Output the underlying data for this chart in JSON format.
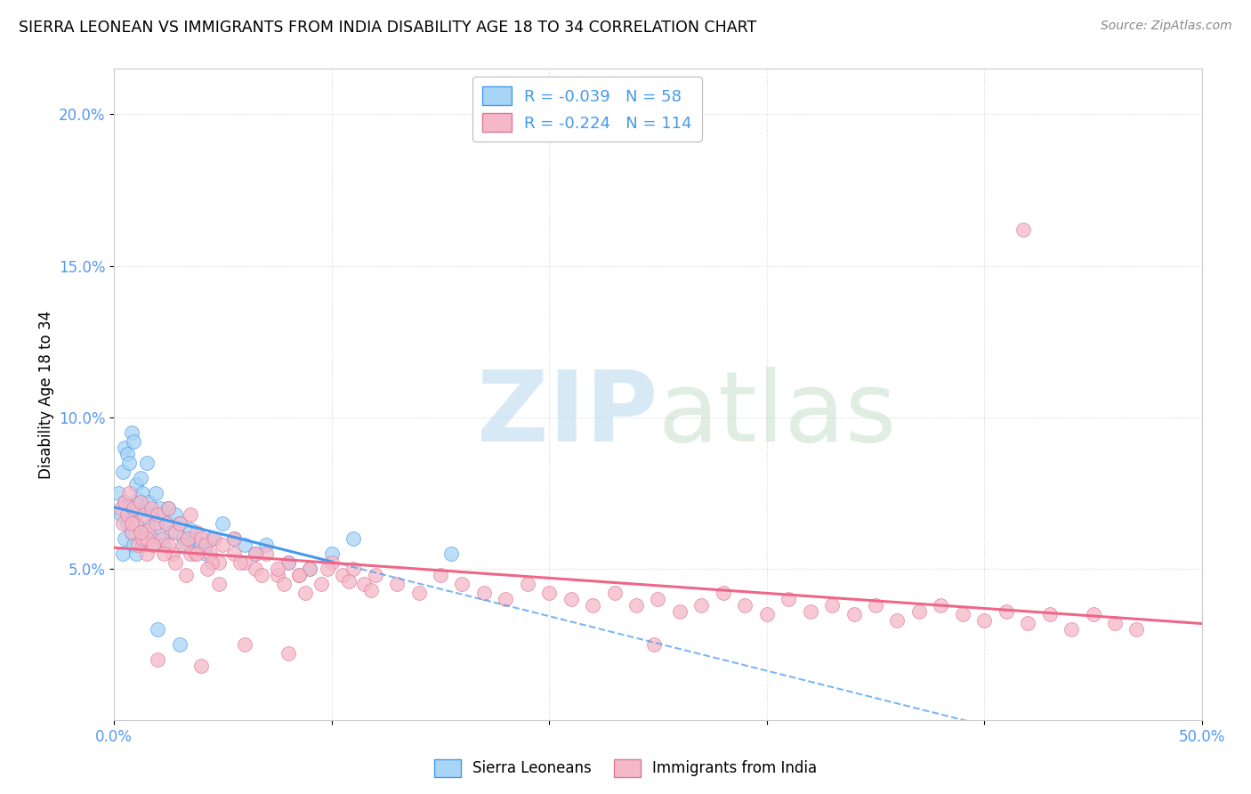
{
  "title": "SIERRA LEONEAN VS IMMIGRANTS FROM INDIA DISABILITY AGE 18 TO 34 CORRELATION CHART",
  "source": "Source: ZipAtlas.com",
  "ylabel": "Disability Age 18 to 34",
  "x_min": 0.0,
  "x_max": 0.5,
  "y_min": 0.0,
  "y_max": 0.215,
  "color_blue": "#a8d4f5",
  "color_pink": "#f5b8c8",
  "trendline_blue": "#4499ee",
  "trendline_pink": "#ee6688",
  "tick_color": "#5599ee",
  "legend1_R": "-0.039",
  "legend1_N": "58",
  "legend2_R": "-0.224",
  "legend2_N": "114",
  "sierra_x": [
    0.002,
    0.003,
    0.004,
    0.004,
    0.005,
    0.005,
    0.005,
    0.006,
    0.006,
    0.007,
    0.007,
    0.008,
    0.008,
    0.009,
    0.009,
    0.01,
    0.01,
    0.01,
    0.011,
    0.012,
    0.012,
    0.013,
    0.013,
    0.014,
    0.015,
    0.015,
    0.016,
    0.017,
    0.018,
    0.019,
    0.02,
    0.021,
    0.022,
    0.023,
    0.024,
    0.025,
    0.026,
    0.028,
    0.03,
    0.032,
    0.033,
    0.035,
    0.037,
    0.04,
    0.042,
    0.045,
    0.05,
    0.055,
    0.06,
    0.065,
    0.07,
    0.08,
    0.09,
    0.1,
    0.11,
    0.155,
    0.02,
    0.03
  ],
  "sierra_y": [
    0.075,
    0.068,
    0.082,
    0.055,
    0.09,
    0.072,
    0.06,
    0.088,
    0.065,
    0.085,
    0.071,
    0.095,
    0.062,
    0.092,
    0.058,
    0.078,
    0.068,
    0.055,
    0.073,
    0.08,
    0.063,
    0.075,
    0.058,
    0.07,
    0.085,
    0.063,
    0.072,
    0.068,
    0.06,
    0.075,
    0.065,
    0.07,
    0.06,
    0.058,
    0.065,
    0.07,
    0.062,
    0.068,
    0.065,
    0.06,
    0.058,
    0.063,
    0.06,
    0.058,
    0.055,
    0.06,
    0.065,
    0.06,
    0.058,
    0.055,
    0.058,
    0.052,
    0.05,
    0.055,
    0.06,
    0.055,
    0.03,
    0.025
  ],
  "india_x": [
    0.003,
    0.004,
    0.005,
    0.006,
    0.007,
    0.008,
    0.009,
    0.01,
    0.011,
    0.012,
    0.013,
    0.014,
    0.015,
    0.016,
    0.017,
    0.018,
    0.019,
    0.02,
    0.022,
    0.024,
    0.025,
    0.027,
    0.028,
    0.03,
    0.032,
    0.034,
    0.035,
    0.037,
    0.038,
    0.04,
    0.042,
    0.044,
    0.046,
    0.048,
    0.05,
    0.055,
    0.06,
    0.065,
    0.07,
    0.075,
    0.08,
    0.085,
    0.09,
    0.095,
    0.1,
    0.105,
    0.11,
    0.115,
    0.12,
    0.13,
    0.14,
    0.15,
    0.16,
    0.17,
    0.18,
    0.19,
    0.2,
    0.21,
    0.22,
    0.23,
    0.24,
    0.25,
    0.26,
    0.27,
    0.28,
    0.29,
    0.3,
    0.31,
    0.32,
    0.33,
    0.34,
    0.35,
    0.36,
    0.37,
    0.38,
    0.39,
    0.4,
    0.41,
    0.42,
    0.43,
    0.44,
    0.45,
    0.46,
    0.47,
    0.015,
    0.025,
    0.035,
    0.045,
    0.055,
    0.065,
    0.075,
    0.085,
    0.008,
    0.012,
    0.018,
    0.023,
    0.028,
    0.033,
    0.038,
    0.043,
    0.048,
    0.058,
    0.068,
    0.078,
    0.088,
    0.098,
    0.108,
    0.118,
    0.248,
    0.418,
    0.02,
    0.04,
    0.06,
    0.08
  ],
  "india_y": [
    0.07,
    0.065,
    0.072,
    0.068,
    0.075,
    0.062,
    0.07,
    0.065,
    0.058,
    0.072,
    0.06,
    0.068,
    0.055,
    0.063,
    0.07,
    0.058,
    0.065,
    0.068,
    0.06,
    0.065,
    0.07,
    0.055,
    0.062,
    0.065,
    0.058,
    0.06,
    0.068,
    0.055,
    0.062,
    0.06,
    0.058,
    0.055,
    0.06,
    0.052,
    0.058,
    0.055,
    0.052,
    0.05,
    0.055,
    0.048,
    0.052,
    0.048,
    0.05,
    0.045,
    0.052,
    0.048,
    0.05,
    0.045,
    0.048,
    0.045,
    0.042,
    0.048,
    0.045,
    0.042,
    0.04,
    0.045,
    0.042,
    0.04,
    0.038,
    0.042,
    0.038,
    0.04,
    0.036,
    0.038,
    0.042,
    0.038,
    0.035,
    0.04,
    0.036,
    0.038,
    0.035,
    0.038,
    0.033,
    0.036,
    0.038,
    0.035,
    0.033,
    0.036,
    0.032,
    0.035,
    0.03,
    0.035,
    0.032,
    0.03,
    0.06,
    0.058,
    0.055,
    0.052,
    0.06,
    0.055,
    0.05,
    0.048,
    0.065,
    0.062,
    0.058,
    0.055,
    0.052,
    0.048,
    0.055,
    0.05,
    0.045,
    0.052,
    0.048,
    0.045,
    0.042,
    0.05,
    0.046,
    0.043,
    0.025,
    0.162,
    0.02,
    0.018,
    0.025,
    0.022
  ]
}
